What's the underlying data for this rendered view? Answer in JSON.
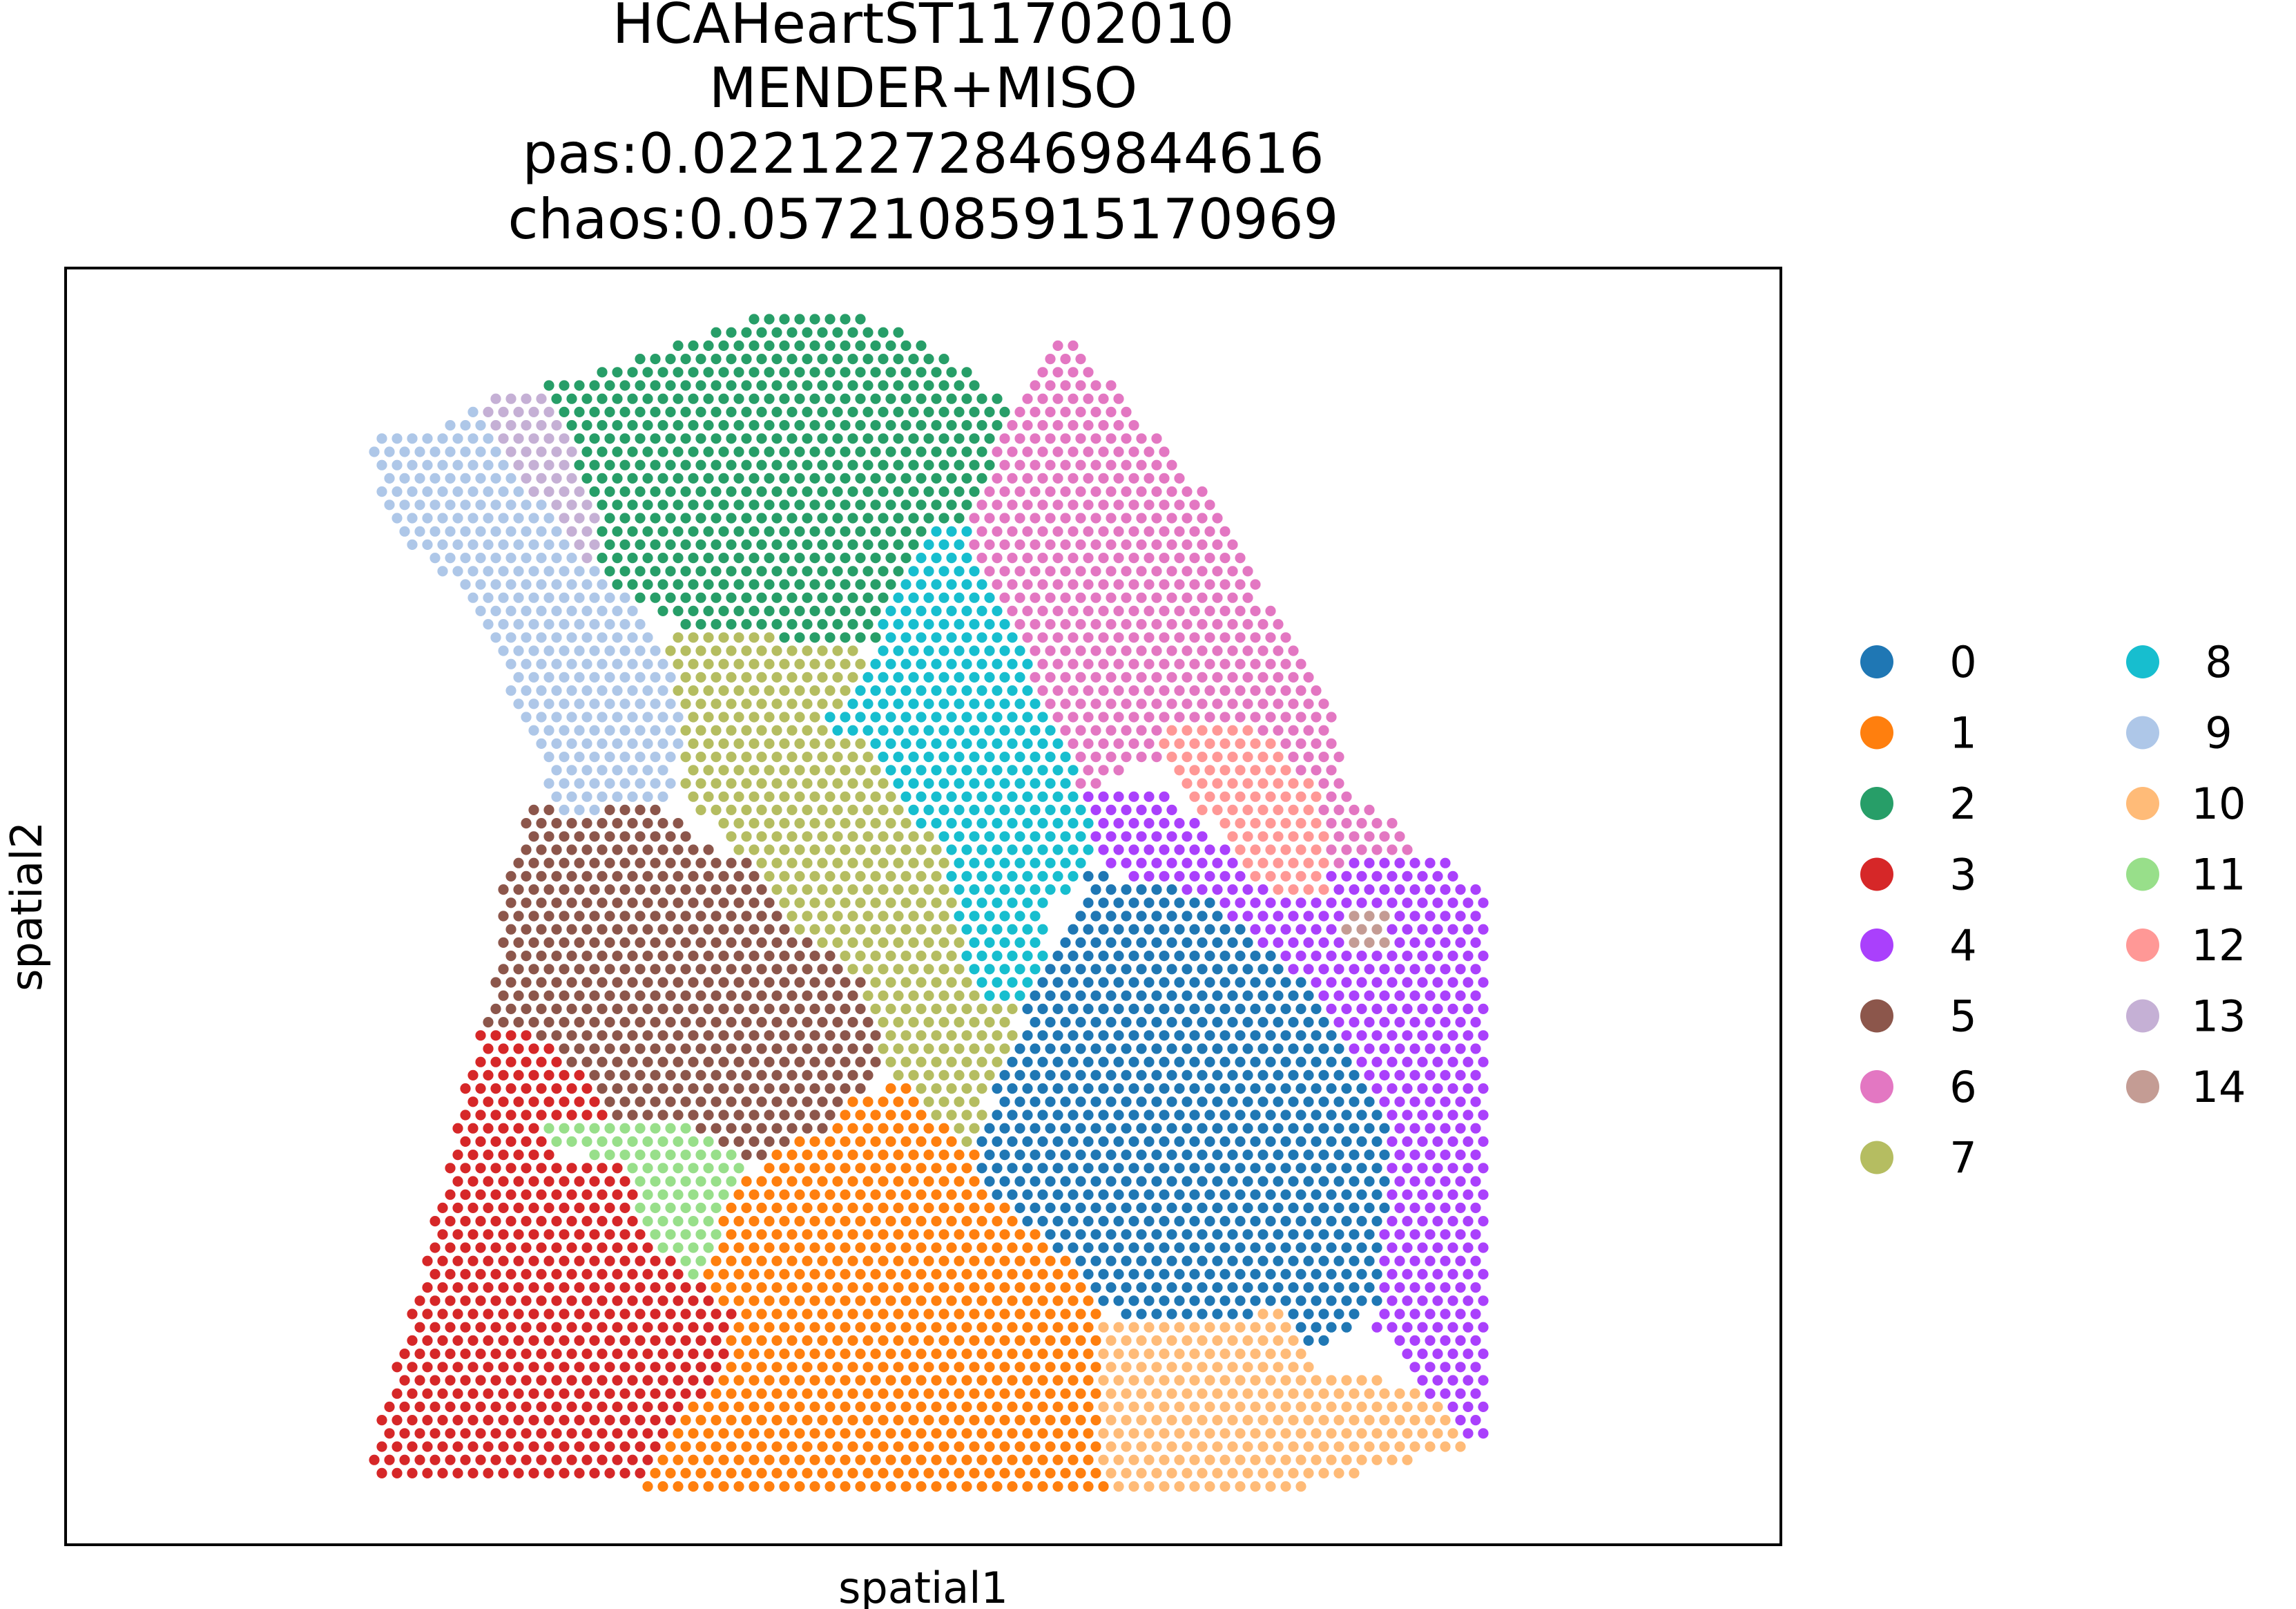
{
  "chart_data": {
    "type": "scatter",
    "title_lines": [
      "HCAHeartST11702010",
      "MENDER+MISO",
      "pas:0.022122728469844616",
      "chaos:0.05721085915170969"
    ],
    "xlabel": "spatial1",
    "ylabel": "spatial2",
    "legend_position": "right",
    "series": [
      {
        "name": "0",
        "color": "#1f77b4"
      },
      {
        "name": "1",
        "color": "#ff7f0e"
      },
      {
        "name": "2",
        "color": "#279e68"
      },
      {
        "name": "3",
        "color": "#d62728"
      },
      {
        "name": "4",
        "color": "#aa40fc"
      },
      {
        "name": "5",
        "color": "#8c564b"
      },
      {
        "name": "6",
        "color": "#e377c2"
      },
      {
        "name": "7",
        "color": "#b5bd61"
      },
      {
        "name": "8",
        "color": "#17becf"
      },
      {
        "name": "9",
        "color": "#aec7e8"
      },
      {
        "name": "10",
        "color": "#ffbb78"
      },
      {
        "name": "11",
        "color": "#98df8a"
      },
      {
        "name": "12",
        "color": "#ff9896"
      },
      {
        "name": "13",
        "color": "#c5b0d5"
      },
      {
        "name": "14",
        "color": "#c49c94"
      }
    ]
  }
}
